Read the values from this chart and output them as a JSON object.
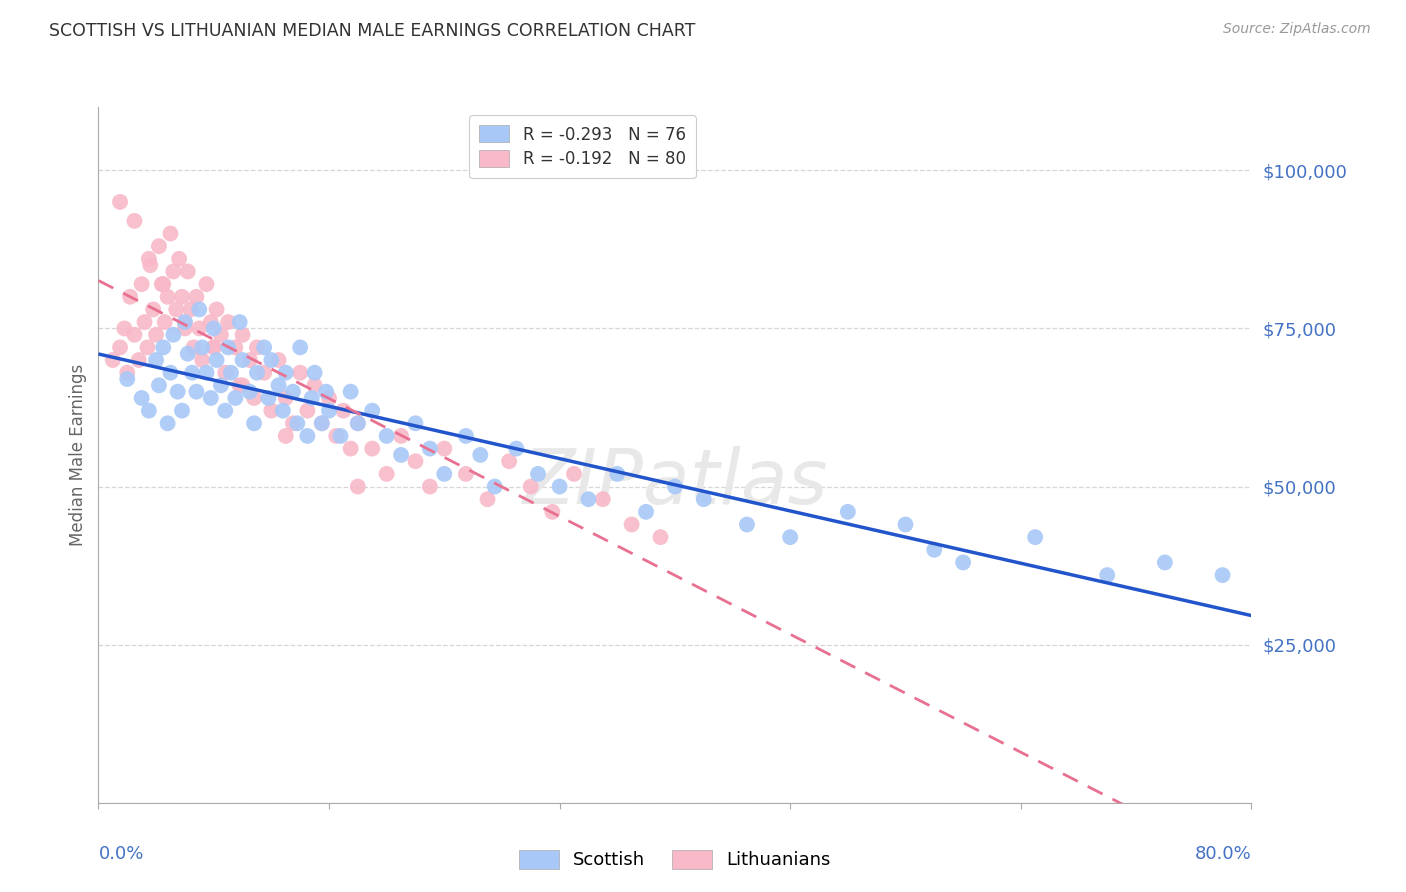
{
  "title": "SCOTTISH VS LITHUANIAN MEDIAN MALE EARNINGS CORRELATION CHART",
  "source": "Source: ZipAtlas.com",
  "ylabel": "Median Male Earnings",
  "watermark": "ZIPatlas",
  "scottish_color": "#a8c8f8",
  "lithuanian_color": "#f8b8c8",
  "trendline_scottish_color": "#2255cc",
  "trendline_lithuanian_color": "#e87090",
  "ylim": [
    0,
    110000
  ],
  "xlim": [
    0.0,
    0.8
  ],
  "background_color": "#ffffff",
  "grid_color": "#cccccc",
  "title_color": "#333333",
  "tick_color": "#4472c4",
  "ylabel_color": "#666666",
  "legend_top_label1": "R = -0.293   N = 76",
  "legend_top_label2": "R = -0.192   N = 80",
  "legend_bot_label1": "Scottish",
  "legend_bot_label2": "Lithuanians",
  "scottish_x": [
    0.02,
    0.03,
    0.035,
    0.04,
    0.042,
    0.045,
    0.048,
    0.05,
    0.052,
    0.055,
    0.058,
    0.06,
    0.062,
    0.065,
    0.068,
    0.07,
    0.072,
    0.075,
    0.078,
    0.08,
    0.082,
    0.085,
    0.088,
    0.09,
    0.092,
    0.095,
    0.098,
    0.1,
    0.105,
    0.108,
    0.11,
    0.115,
    0.118,
    0.12,
    0.125,
    0.128,
    0.13,
    0.135,
    0.138,
    0.14,
    0.145,
    0.148,
    0.15,
    0.155,
    0.158,
    0.16,
    0.168,
    0.175,
    0.18,
    0.19,
    0.2,
    0.21,
    0.22,
    0.23,
    0.24,
    0.255,
    0.265,
    0.275,
    0.29,
    0.305,
    0.32,
    0.34,
    0.36,
    0.38,
    0.4,
    0.42,
    0.45,
    0.48,
    0.52,
    0.56,
    0.58,
    0.6,
    0.65,
    0.7,
    0.74,
    0.78
  ],
  "scottish_y": [
    67000,
    64000,
    62000,
    70000,
    66000,
    72000,
    60000,
    68000,
    74000,
    65000,
    62000,
    76000,
    71000,
    68000,
    65000,
    78000,
    72000,
    68000,
    64000,
    75000,
    70000,
    66000,
    62000,
    72000,
    68000,
    64000,
    76000,
    70000,
    65000,
    60000,
    68000,
    72000,
    64000,
    70000,
    66000,
    62000,
    68000,
    65000,
    60000,
    72000,
    58000,
    64000,
    68000,
    60000,
    65000,
    62000,
    58000,
    65000,
    60000,
    62000,
    58000,
    55000,
    60000,
    56000,
    52000,
    58000,
    55000,
    50000,
    56000,
    52000,
    50000,
    48000,
    52000,
    46000,
    50000,
    48000,
    44000,
    42000,
    46000,
    44000,
    40000,
    38000,
    42000,
    36000,
    38000,
    36000
  ],
  "lithuanian_x": [
    0.01,
    0.015,
    0.018,
    0.02,
    0.022,
    0.025,
    0.028,
    0.03,
    0.032,
    0.034,
    0.036,
    0.038,
    0.04,
    0.042,
    0.044,
    0.046,
    0.048,
    0.05,
    0.052,
    0.054,
    0.056,
    0.058,
    0.06,
    0.062,
    0.064,
    0.066,
    0.068,
    0.07,
    0.072,
    0.075,
    0.078,
    0.08,
    0.082,
    0.085,
    0.088,
    0.09,
    0.095,
    0.098,
    0.1,
    0.105,
    0.108,
    0.11,
    0.115,
    0.12,
    0.125,
    0.13,
    0.135,
    0.14,
    0.145,
    0.15,
    0.155,
    0.16,
    0.165,
    0.17,
    0.175,
    0.18,
    0.19,
    0.2,
    0.21,
    0.22,
    0.23,
    0.24,
    0.255,
    0.27,
    0.285,
    0.3,
    0.315,
    0.33,
    0.35,
    0.37,
    0.39,
    0.015,
    0.025,
    0.035,
    0.045,
    0.06,
    0.08,
    0.1,
    0.13,
    0.18
  ],
  "lithuanian_y": [
    70000,
    72000,
    75000,
    68000,
    80000,
    74000,
    70000,
    82000,
    76000,
    72000,
    85000,
    78000,
    74000,
    88000,
    82000,
    76000,
    80000,
    90000,
    84000,
    78000,
    86000,
    80000,
    75000,
    84000,
    78000,
    72000,
    80000,
    75000,
    70000,
    82000,
    76000,
    72000,
    78000,
    74000,
    68000,
    76000,
    72000,
    66000,
    74000,
    70000,
    64000,
    72000,
    68000,
    62000,
    70000,
    64000,
    60000,
    68000,
    62000,
    66000,
    60000,
    64000,
    58000,
    62000,
    56000,
    60000,
    56000,
    52000,
    58000,
    54000,
    50000,
    56000,
    52000,
    48000,
    54000,
    50000,
    46000,
    52000,
    48000,
    44000,
    42000,
    95000,
    92000,
    86000,
    82000,
    76000,
    72000,
    66000,
    58000,
    50000
  ]
}
